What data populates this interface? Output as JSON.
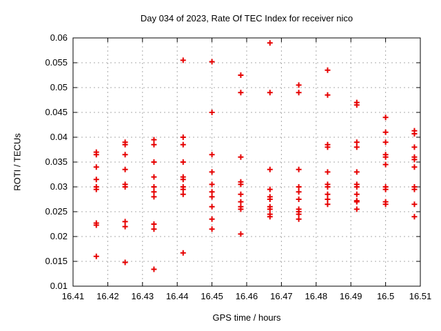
{
  "chart_data": {
    "type": "scatter",
    "title": "Day 034 of 2023, Rate Of TEC Index for receiver nico",
    "xlabel": "GPS time / hours",
    "ylabel": "ROTI / TECUs",
    "xlim": [
      16.41,
      16.51
    ],
    "ylim": [
      0.01,
      0.06
    ],
    "xticks": [
      16.41,
      16.42,
      16.43,
      16.44,
      16.45,
      16.46,
      16.47,
      16.48,
      16.49,
      16.5,
      16.51
    ],
    "yticks": [
      0.01,
      0.015,
      0.02,
      0.025,
      0.03,
      0.035,
      0.04,
      0.045,
      0.05,
      0.055,
      0.06
    ],
    "grid": true,
    "legend_position": "none",
    "colors": {
      "marker": "#e60000",
      "grid": "#a8a8a8",
      "border": "#000000",
      "text": "#000000"
    },
    "marker_shape": "plus",
    "series": [
      {
        "name": "ROTI",
        "points": [
          [
            16.4167,
            0.037
          ],
          [
            16.4167,
            0.0365
          ],
          [
            16.4167,
            0.034
          ],
          [
            16.4167,
            0.0315
          ],
          [
            16.4167,
            0.03
          ],
          [
            16.4167,
            0.0295
          ],
          [
            16.4167,
            0.0227
          ],
          [
            16.4167,
            0.0223
          ],
          [
            16.4167,
            0.016
          ],
          [
            16.425,
            0.039
          ],
          [
            16.425,
            0.0385
          ],
          [
            16.425,
            0.0365
          ],
          [
            16.425,
            0.0335
          ],
          [
            16.425,
            0.0305
          ],
          [
            16.425,
            0.03
          ],
          [
            16.425,
            0.023
          ],
          [
            16.425,
            0.022
          ],
          [
            16.425,
            0.0148
          ],
          [
            16.4333,
            0.0395
          ],
          [
            16.4333,
            0.0385
          ],
          [
            16.4333,
            0.035
          ],
          [
            16.4333,
            0.032
          ],
          [
            16.4333,
            0.03
          ],
          [
            16.4333,
            0.029
          ],
          [
            16.4333,
            0.028
          ],
          [
            16.4333,
            0.0225
          ],
          [
            16.4333,
            0.0215
          ],
          [
            16.4333,
            0.0134
          ],
          [
            16.4417,
            0.0555
          ],
          [
            16.4417,
            0.04
          ],
          [
            16.4417,
            0.0385
          ],
          [
            16.4417,
            0.035
          ],
          [
            16.4417,
            0.032
          ],
          [
            16.4417,
            0.0315
          ],
          [
            16.4417,
            0.03
          ],
          [
            16.4417,
            0.0295
          ],
          [
            16.4417,
            0.0285
          ],
          [
            16.4417,
            0.0167
          ],
          [
            16.45,
            0.0552
          ],
          [
            16.45,
            0.045
          ],
          [
            16.45,
            0.0365
          ],
          [
            16.45,
            0.033
          ],
          [
            16.45,
            0.0305
          ],
          [
            16.45,
            0.029
          ],
          [
            16.45,
            0.028
          ],
          [
            16.45,
            0.026
          ],
          [
            16.45,
            0.0235
          ],
          [
            16.45,
            0.0215
          ],
          [
            16.4583,
            0.0525
          ],
          [
            16.4583,
            0.049
          ],
          [
            16.4583,
            0.036
          ],
          [
            16.4583,
            0.031
          ],
          [
            16.4583,
            0.0305
          ],
          [
            16.4583,
            0.0285
          ],
          [
            16.4583,
            0.027
          ],
          [
            16.4583,
            0.026
          ],
          [
            16.4583,
            0.0255
          ],
          [
            16.4583,
            0.0205
          ],
          [
            16.4667,
            0.059
          ],
          [
            16.4667,
            0.049
          ],
          [
            16.4667,
            0.0335
          ],
          [
            16.4667,
            0.0295
          ],
          [
            16.4667,
            0.028
          ],
          [
            16.4667,
            0.0275
          ],
          [
            16.4667,
            0.026
          ],
          [
            16.4667,
            0.0255
          ],
          [
            16.4667,
            0.0245
          ],
          [
            16.4667,
            0.024
          ],
          [
            16.475,
            0.0505
          ],
          [
            16.475,
            0.049
          ],
          [
            16.475,
            0.0335
          ],
          [
            16.475,
            0.03
          ],
          [
            16.475,
            0.029
          ],
          [
            16.475,
            0.0275
          ],
          [
            16.475,
            0.0255
          ],
          [
            16.475,
            0.025
          ],
          [
            16.475,
            0.0245
          ],
          [
            16.475,
            0.0235
          ],
          [
            16.4833,
            0.0535
          ],
          [
            16.4833,
            0.0485
          ],
          [
            16.4833,
            0.0385
          ],
          [
            16.4833,
            0.038
          ],
          [
            16.4833,
            0.033
          ],
          [
            16.4833,
            0.0305
          ],
          [
            16.4833,
            0.03
          ],
          [
            16.4833,
            0.0285
          ],
          [
            16.4833,
            0.0275
          ],
          [
            16.4833,
            0.0265
          ],
          [
            16.4917,
            0.047
          ],
          [
            16.4917,
            0.0465
          ],
          [
            16.4917,
            0.039
          ],
          [
            16.4917,
            0.038
          ],
          [
            16.4917,
            0.033
          ],
          [
            16.4917,
            0.0305
          ],
          [
            16.4917,
            0.03
          ],
          [
            16.4917,
            0.0285
          ],
          [
            16.4917,
            0.0272
          ],
          [
            16.4917,
            0.027
          ],
          [
            16.4917,
            0.0255
          ],
          [
            16.5,
            0.044
          ],
          [
            16.5,
            0.041
          ],
          [
            16.5,
            0.039
          ],
          [
            16.5,
            0.0365
          ],
          [
            16.5,
            0.036
          ],
          [
            16.5,
            0.0345
          ],
          [
            16.5,
            0.03
          ],
          [
            16.5,
            0.0295
          ],
          [
            16.5,
            0.027
          ],
          [
            16.5,
            0.0265
          ],
          [
            16.5083,
            0.0413
          ],
          [
            16.5083,
            0.0407
          ],
          [
            16.5083,
            0.038
          ],
          [
            16.5083,
            0.036
          ],
          [
            16.5083,
            0.0355
          ],
          [
            16.5083,
            0.034
          ],
          [
            16.5083,
            0.03
          ],
          [
            16.5083,
            0.0295
          ],
          [
            16.5083,
            0.0265
          ],
          [
            16.5083,
            0.024
          ]
        ]
      }
    ]
  }
}
